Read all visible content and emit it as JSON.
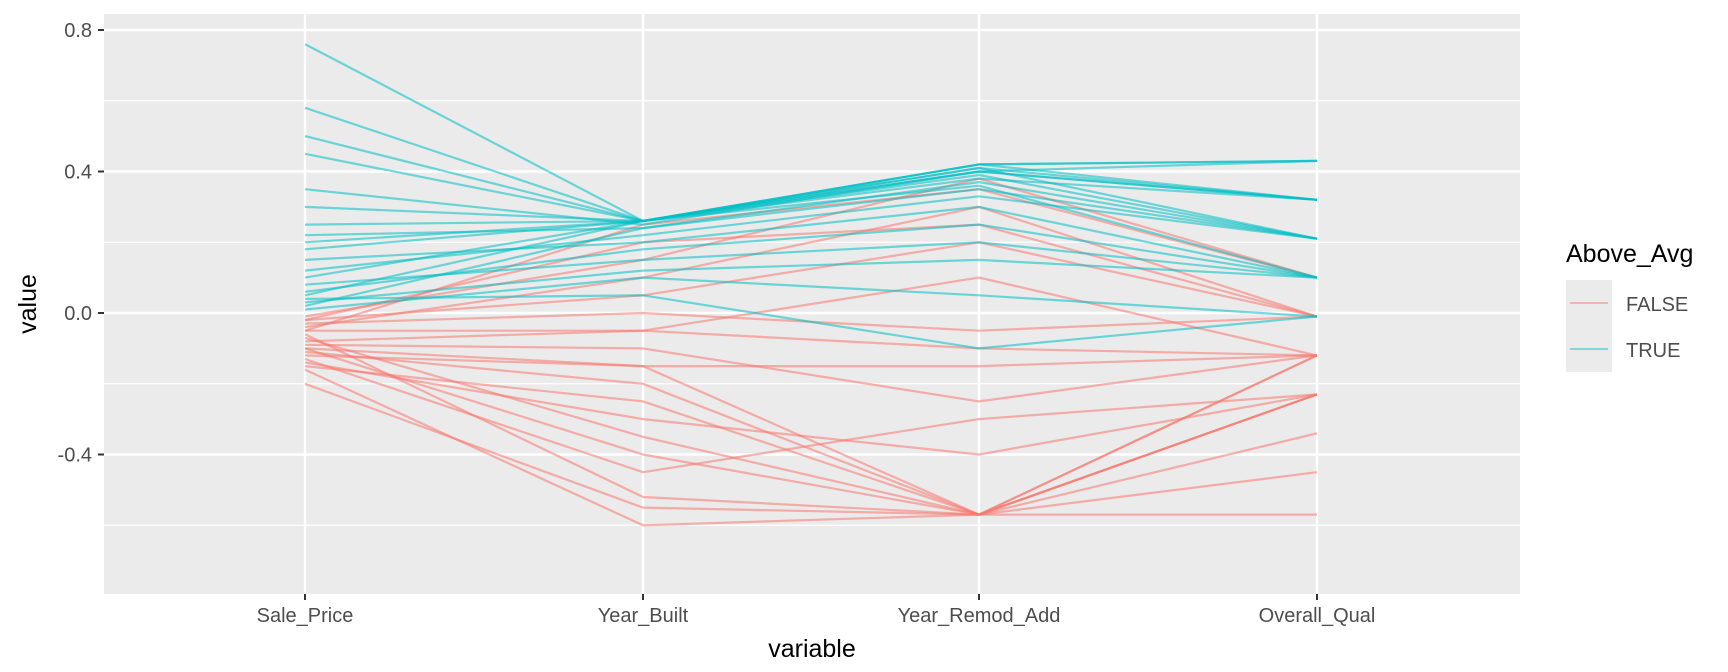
{
  "chart_data": {
    "type": "line",
    "subtype": "parallel-coordinates",
    "title": "",
    "xlabel": "variable",
    "ylabel": "value",
    "categories": [
      "Sale_Price",
      "Year_Built",
      "Year_Remod_Add",
      "Overall_Qual"
    ],
    "ylim": [
      -0.8,
      0.8
    ],
    "y_ticks": [
      0.8,
      0.4,
      0.0,
      -0.4
    ],
    "y_tick_labels": [
      "0.8",
      "0.4",
      "0.0",
      "-0.4"
    ],
    "grid": true,
    "legend": {
      "title": "Above_Avg",
      "position": "right",
      "entries": [
        {
          "label": "FALSE",
          "color": "#F8766D"
        },
        {
          "label": "TRUE",
          "color": "#00BFC4"
        }
      ]
    },
    "series": [
      {
        "name": "FALSE",
        "color": "#F8766D",
        "lines": [
          [
            -0.05,
            0.25,
            0.35,
            0.1
          ],
          [
            -0.02,
            0.05,
            0.2,
            -0.01
          ],
          [
            -0.08,
            -0.05,
            -0.1,
            -0.12
          ],
          [
            -0.12,
            -0.15,
            -0.57,
            -0.23
          ],
          [
            -0.15,
            -0.25,
            -0.57,
            -0.12
          ],
          [
            -0.1,
            -0.4,
            -0.57,
            -0.23
          ],
          [
            -0.06,
            -0.52,
            -0.57,
            -0.34
          ],
          [
            -0.2,
            -0.55,
            -0.57,
            -0.45
          ],
          [
            -0.03,
            0.0,
            -0.05,
            -0.01
          ],
          [
            -0.09,
            -0.1,
            -0.25,
            -0.12
          ],
          [
            -0.14,
            -0.3,
            -0.4,
            -0.23
          ],
          [
            -0.04,
            0.1,
            0.3,
            -0.01
          ],
          [
            -0.11,
            -0.2,
            -0.57,
            -0.12
          ],
          [
            -0.07,
            -0.35,
            -0.57,
            -0.57
          ],
          [
            -0.01,
            0.15,
            0.38,
            0.1
          ],
          [
            -0.13,
            -0.45,
            -0.3,
            -0.23
          ],
          [
            -0.05,
            -0.05,
            0.1,
            -0.12
          ],
          [
            -0.16,
            -0.6,
            -0.57,
            -0.23
          ],
          [
            -0.02,
            0.2,
            0.25,
            -0.01
          ],
          [
            -0.1,
            -0.15,
            -0.15,
            -0.12
          ]
        ]
      },
      {
        "name": "TRUE",
        "color": "#00BFC4",
        "lines": [
          [
            0.05,
            0.26,
            0.4,
            0.43
          ],
          [
            0.1,
            0.26,
            0.42,
            0.32
          ],
          [
            0.2,
            0.26,
            0.38,
            0.32
          ],
          [
            0.02,
            0.24,
            0.35,
            0.21
          ],
          [
            0.3,
            0.26,
            0.41,
            0.21
          ],
          [
            0.15,
            0.2,
            0.3,
            0.1
          ],
          [
            0.58,
            0.26,
            0.42,
            0.43
          ],
          [
            0.76,
            0.26,
            0.41,
            0.32
          ],
          [
            0.08,
            0.15,
            0.2,
            0.1
          ],
          [
            0.25,
            0.26,
            0.39,
            0.21
          ],
          [
            0.01,
            0.1,
            0.05,
            -0.01
          ],
          [
            0.12,
            0.22,
            0.33,
            0.21
          ],
          [
            0.35,
            0.25,
            0.4,
            0.32
          ],
          [
            0.04,
            0.05,
            -0.1,
            -0.01
          ],
          [
            0.18,
            0.26,
            0.36,
            0.1
          ],
          [
            0.45,
            0.26,
            0.42,
            0.43
          ],
          [
            0.06,
            0.18,
            0.25,
            0.1
          ],
          [
            0.22,
            0.24,
            0.37,
            0.21
          ],
          [
            0.03,
            0.12,
            0.15,
            0.1
          ],
          [
            0.5,
            0.26,
            0.4,
            0.32
          ]
        ]
      }
    ]
  }
}
